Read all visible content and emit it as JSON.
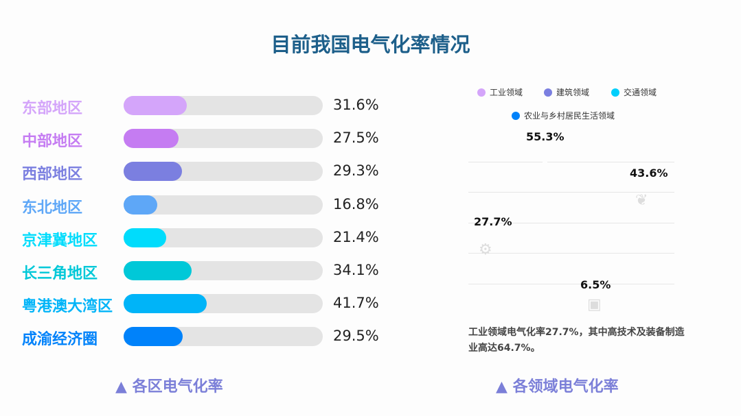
{
  "title": "目前我国电气化率情况",
  "chart_data": [
    {
      "type": "bar",
      "orientation": "horizontal",
      "categories": [
        "东部地区",
        "中部地区",
        "西部地区",
        "东北地区",
        "京津冀地区",
        "长三角地区",
        "粤港澳大湾区",
        "成渝经济圈"
      ],
      "values": [
        31.6,
        27.5,
        29.3,
        16.8,
        21.4,
        34.1,
        41.7,
        29.5
      ],
      "value_labels": [
        "31.6%",
        "27.5%",
        "29.3%",
        "16.8%",
        "21.4%",
        "34.1%",
        "41.7%",
        "29.5%"
      ],
      "colors": [
        "#d4a5fa",
        "#c57cf2",
        "#7b7fe0",
        "#5ea7f7",
        "#00dcfc",
        "#00c8d8",
        "#00b4f8",
        "#0082fa"
      ],
      "xlim": [
        0,
        100
      ],
      "caption": "▲ 各区电气化率"
    },
    {
      "type": "table",
      "legend": [
        {
          "name": "工业领域",
          "color": "#d4a5fa"
        },
        {
          "name": "建筑领域",
          "color": "#7b7fe0"
        },
        {
          "name": "交通领域",
          "color": "#00cffc"
        },
        {
          "name": "农业与乡村居民生活领域",
          "color": "#0082fa"
        }
      ],
      "values": [
        {
          "series": "建筑领域",
          "label": "55.3%",
          "value": 55.3
        },
        {
          "series": "农业与乡村居民生活领域",
          "label": "43.6%",
          "value": 43.6
        },
        {
          "series": "工业领域",
          "label": "27.7%",
          "value": 27.7
        },
        {
          "series": "交通领域",
          "label": "6.5%",
          "value": 6.5
        }
      ],
      "note": "工业领域电气化率27.7%，其中高技术及装备制造业高达64.7%。",
      "caption": "▲ 各领域电气化率"
    }
  ]
}
